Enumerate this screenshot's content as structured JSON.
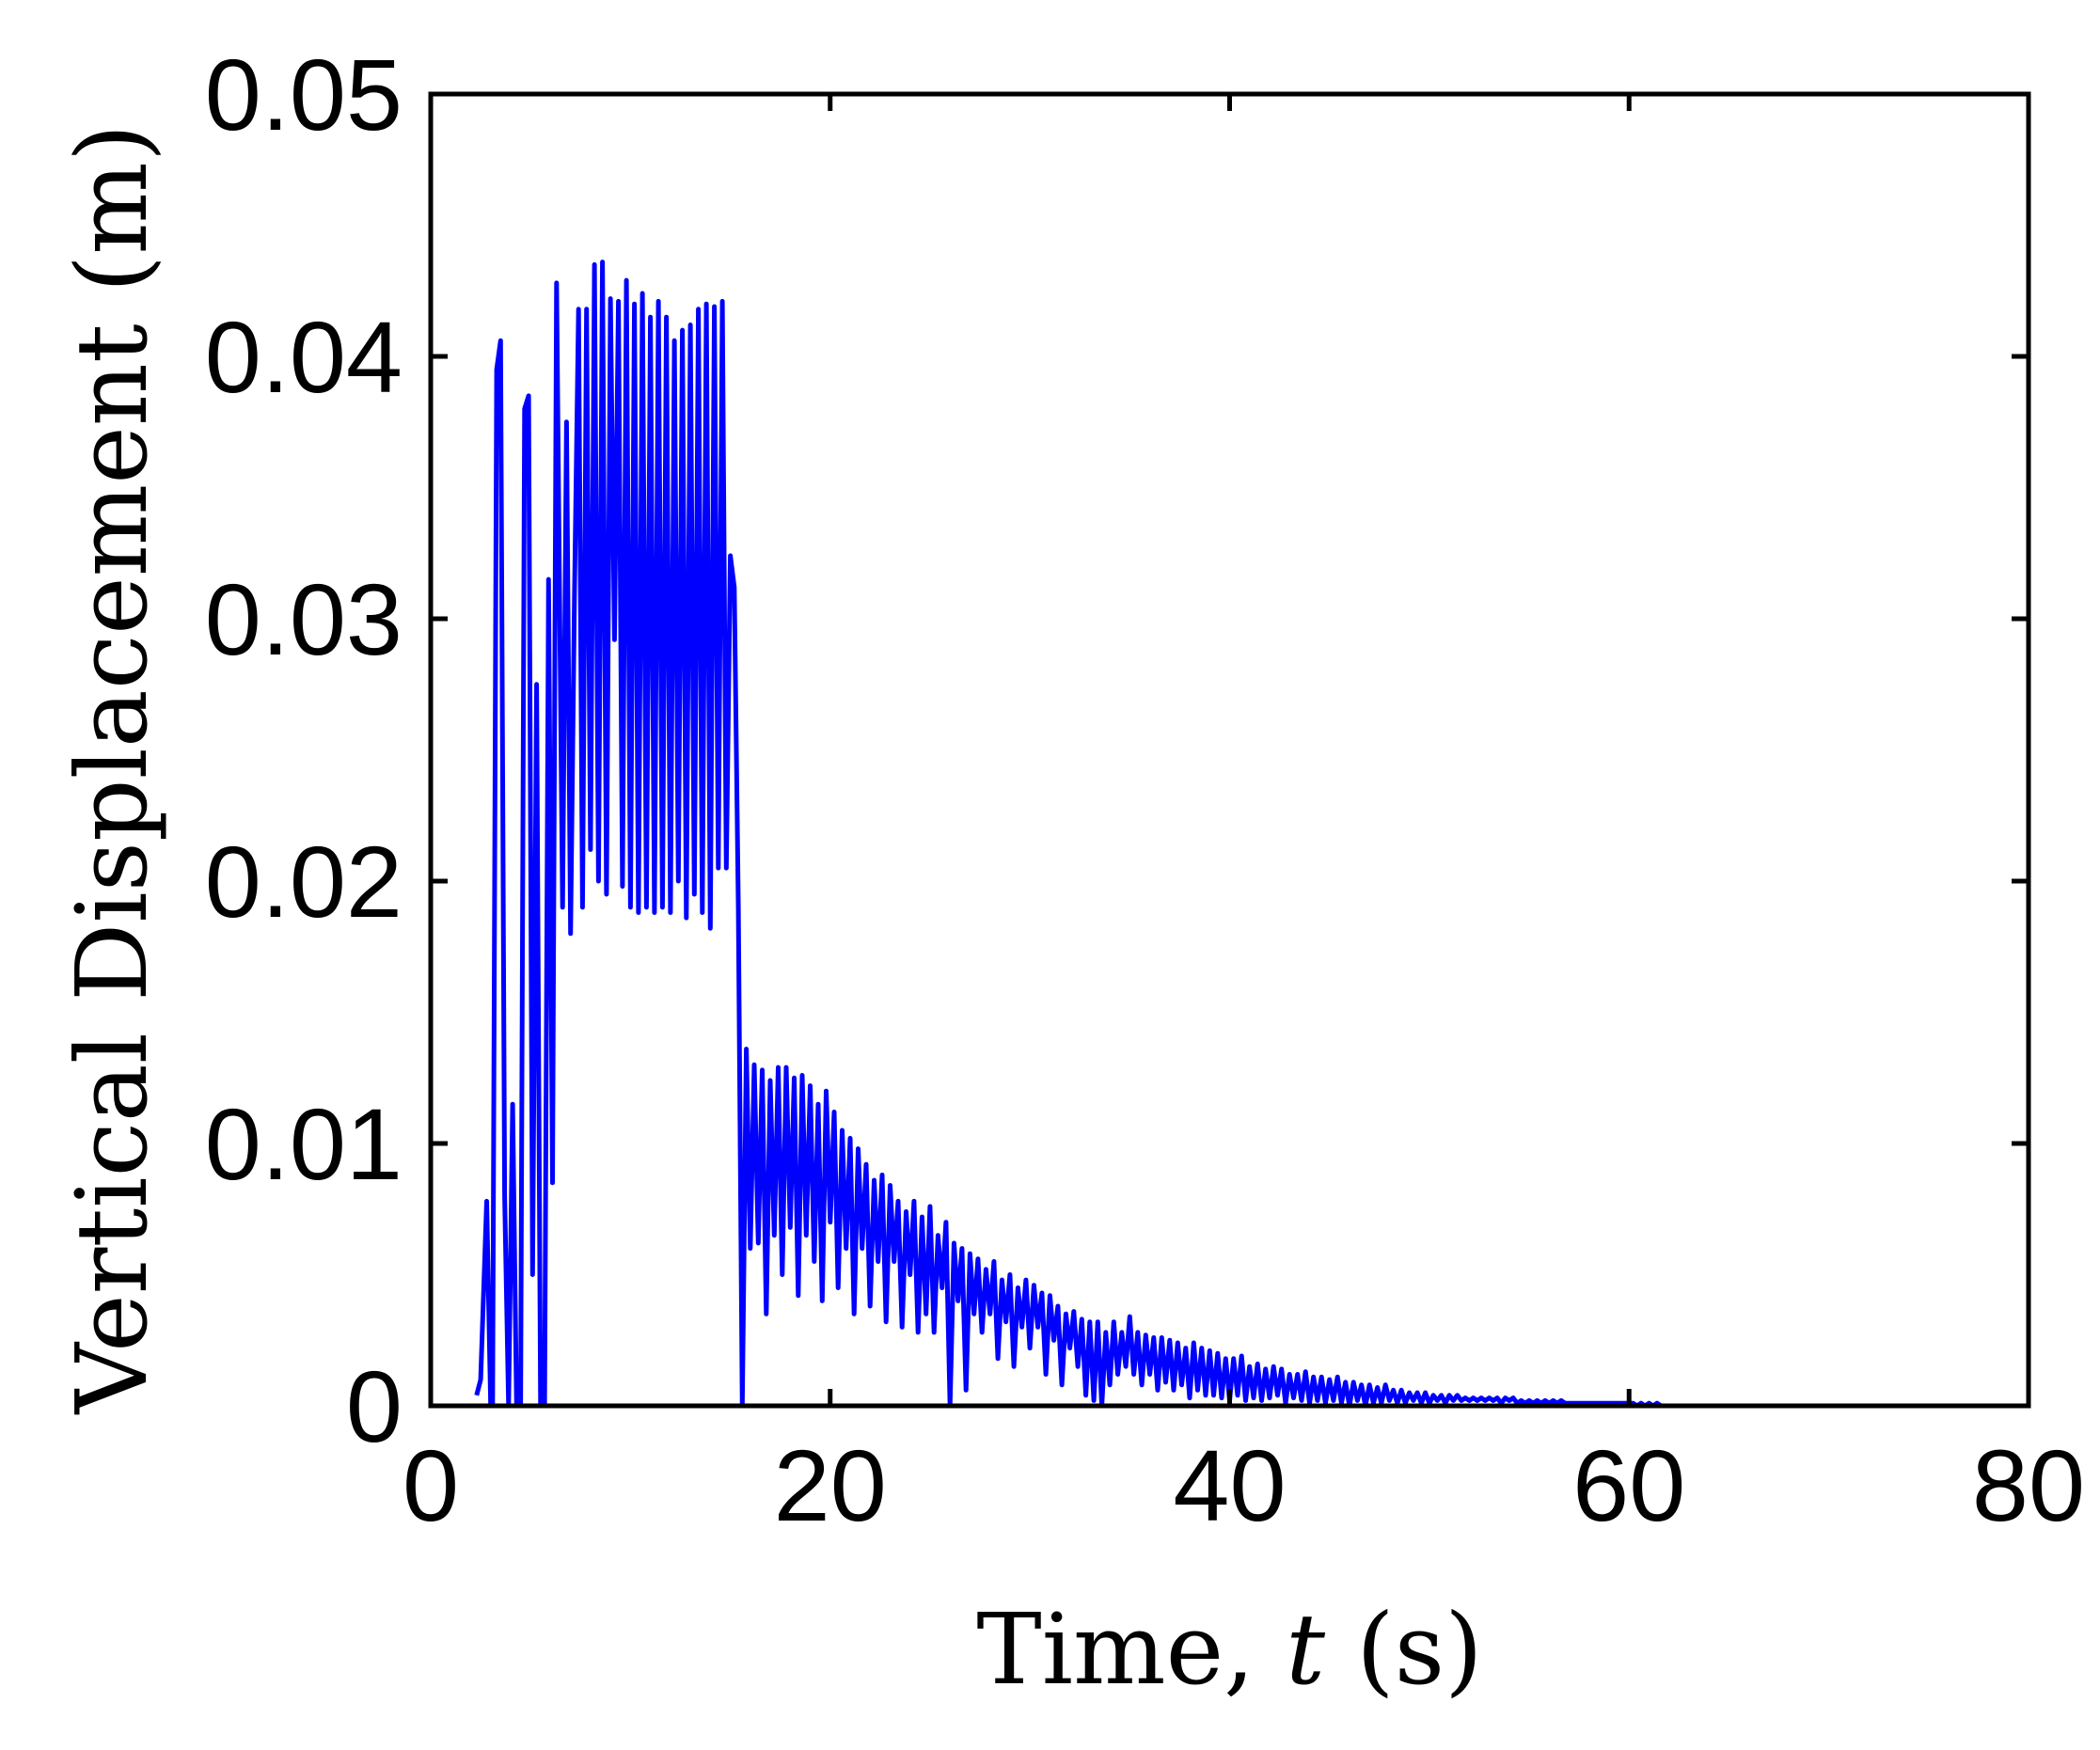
{
  "chart_data": {
    "type": "line",
    "title": "",
    "xlabel": "Time, t (s)",
    "xlabel_parts": {
      "before": "Time, ",
      "var": "t",
      "after": " (s)"
    },
    "ylabel": "Vertical Displacement (m)",
    "xlim": [
      0,
      80
    ],
    "ylim": [
      0,
      0.05
    ],
    "xticks": [
      0,
      20,
      40,
      60,
      80
    ],
    "xtick_labels": [
      "0",
      "20",
      "40",
      "60",
      "80"
    ],
    "yticks": [
      0,
      0.01,
      0.02,
      0.03,
      0.04,
      0.05
    ],
    "ytick_labels": [
      "0",
      "0.01",
      "0.02",
      "0.03",
      "0.04",
      "0.05"
    ],
    "grid": false,
    "legend": "none",
    "series": [
      {
        "color": "#0000ff",
        "x": [
          2.3,
          2.5,
          2.8,
          3.0,
          3.1,
          3.3,
          3.5,
          3.7,
          3.9,
          4.1,
          4.3,
          4.5,
          4.7,
          4.9,
          5.1,
          5.3,
          5.5,
          5.7,
          5.9,
          6.1,
          6.3,
          6.6,
          6.8,
          7.0,
          7.2,
          7.4,
          7.6,
          7.8,
          8.0,
          8.2,
          8.4,
          8.6,
          8.8,
          9.0,
          9.2,
          9.4,
          9.6,
          9.8,
          10.0,
          10.2,
          10.4,
          10.6,
          10.8,
          11.0,
          11.2,
          11.4,
          11.6,
          11.8,
          12.0,
          12.2,
          12.4,
          12.6,
          12.8,
          13.0,
          13.2,
          13.4,
          13.6,
          13.8,
          14.0,
          14.2,
          14.4,
          14.6,
          14.8,
          15.0,
          15.2,
          15.4,
          15.6,
          15.8,
          16.0,
          16.2,
          16.4,
          16.6,
          16.8,
          17.0,
          17.2,
          17.4,
          17.6,
          17.8,
          18.0,
          18.2,
          18.4,
          18.6,
          18.8,
          19.0,
          19.2,
          19.4,
          19.6,
          19.8,
          20.0,
          20.2,
          20.4,
          20.6,
          20.8,
          21.0,
          21.2,
          21.4,
          21.6,
          21.8,
          22.0,
          22.2,
          22.4,
          22.6,
          22.8,
          23.0,
          23.2,
          23.4,
          23.6,
          23.8,
          24.0,
          24.2,
          24.4,
          24.6,
          24.8,
          25.0,
          25.2,
          25.4,
          25.6,
          25.8,
          26.0,
          26.2,
          26.4,
          26.6,
          26.8,
          27.0,
          27.2,
          27.4,
          27.6,
          27.8,
          28.0,
          28.2,
          28.4,
          28.6,
          28.8,
          29.0,
          29.2,
          29.4,
          29.6,
          29.8,
          30.0,
          30.2,
          30.4,
          30.6,
          30.8,
          31.0,
          31.2,
          31.4,
          31.6,
          31.8,
          32.0,
          32.2,
          32.4,
          32.6,
          32.8,
          33.0,
          33.2,
          33.4,
          33.6,
          33.8,
          34.0,
          34.2,
          34.4,
          34.6,
          34.8,
          35.0,
          35.2,
          35.4,
          35.6,
          35.8,
          36.0,
          36.2,
          36.4,
          36.6,
          36.8,
          37.0,
          37.2,
          37.4,
          37.6,
          37.8,
          38.0,
          38.2,
          38.4,
          38.6,
          38.8,
          39.0,
          39.2,
          39.4,
          39.6,
          39.8,
          40.0,
          40.2,
          40.4,
          40.6,
          40.8,
          41.0,
          41.2,
          41.4,
          41.6,
          41.8,
          42.0,
          42.2,
          42.4,
          42.6,
          42.8,
          43.0,
          43.2,
          43.4,
          43.6,
          43.8,
          44.0,
          44.2,
          44.4,
          44.6,
          44.8,
          45.0,
          45.2,
          45.4,
          45.6,
          45.8,
          46.0,
          46.2,
          46.4,
          46.6,
          46.8,
          47.0,
          47.2,
          47.4,
          47.6,
          47.8,
          48.0,
          48.2,
          48.4,
          48.6,
          48.8,
          49.0,
          49.2,
          49.4,
          49.6,
          49.8,
          50.0,
          50.2,
          50.4,
          50.6,
          50.8,
          51.0,
          51.2,
          51.4,
          51.6,
          51.8,
          52.0,
          52.2,
          52.4,
          52.6,
          52.8,
          53.0,
          53.2,
          53.4,
          53.6,
          53.8,
          54.0,
          54.2,
          54.4,
          54.6,
          54.8,
          55.0,
          55.2,
          55.4,
          55.6,
          55.8,
          56.0,
          56.2,
          56.4,
          56.6,
          56.8,
          57.0,
          57.2,
          57.4,
          57.6,
          57.8,
          58.0,
          58.2,
          58.4,
          58.6,
          58.8,
          59.0,
          59.2,
          59.4,
          59.6,
          59.8,
          60.0,
          60.2,
          60.4,
          60.6,
          60.8,
          61.0,
          61.2,
          61.4,
          61.6,
          61.8,
          62.0,
          62.2
        ],
        "y": [
          0.0004,
          0.001,
          0.0078,
          0.0001,
          0.0,
          0.0395,
          0.0406,
          0.008,
          0.0,
          0.0115,
          0.0,
          0.0,
          0.038,
          0.0385,
          0.005,
          0.0275,
          0.0,
          0.0,
          0.0315,
          0.0085,
          0.0428,
          0.019,
          0.0375,
          0.018,
          0.031,
          0.0418,
          0.019,
          0.0418,
          0.0212,
          0.0435,
          0.02,
          0.0436,
          0.0195,
          0.0422,
          0.0292,
          0.0421,
          0.0198,
          0.0429,
          0.019,
          0.042,
          0.0188,
          0.0424,
          0.019,
          0.0415,
          0.0188,
          0.0421,
          0.019,
          0.0415,
          0.0188,
          0.0406,
          0.02,
          0.041,
          0.0186,
          0.0412,
          0.0195,
          0.0418,
          0.0188,
          0.042,
          0.0182,
          0.0419,
          0.0205,
          0.0421,
          0.0205,
          0.0324,
          0.0312,
          0.019,
          0.0,
          0.0136,
          0.006,
          0.013,
          0.0062,
          0.0128,
          0.0035,
          0.0124,
          0.0065,
          0.0129,
          0.005,
          0.0129,
          0.0068,
          0.0125,
          0.0042,
          0.0126,
          0.0065,
          0.0122,
          0.0055,
          0.0115,
          0.004,
          0.012,
          0.007,
          0.0112,
          0.0045,
          0.0105,
          0.006,
          0.0102,
          0.0035,
          0.0098,
          0.006,
          0.0092,
          0.0038,
          0.0086,
          0.0055,
          0.0088,
          0.0032,
          0.0084,
          0.0055,
          0.0078,
          0.003,
          0.0074,
          0.005,
          0.0078,
          0.0028,
          0.0072,
          0.0035,
          0.0076,
          0.0028,
          0.0065,
          0.0045,
          0.007,
          0.0,
          0.0062,
          0.004,
          0.006,
          0.0006,
          0.0058,
          0.0035,
          0.0056,
          0.0028,
          0.0052,
          0.0035,
          0.0055,
          0.0018,
          0.0048,
          0.0032,
          0.005,
          0.0015,
          0.0045,
          0.003,
          0.0048,
          0.0022,
          0.0046,
          0.003,
          0.0043,
          0.0012,
          0.0042,
          0.0025,
          0.0038,
          0.0008,
          0.0035,
          0.0022,
          0.0036,
          0.0015,
          0.0033,
          0.0004,
          0.0032,
          0.0002,
          0.0032,
          0.0,
          0.0028,
          0.0008,
          0.0032,
          0.0012,
          0.0028,
          0.0015,
          0.0034,
          0.0012,
          0.0028,
          0.0008,
          0.0027,
          0.0012,
          0.0026,
          0.0006,
          0.0026,
          0.0009,
          0.0025,
          0.0006,
          0.0024,
          0.0008,
          0.0022,
          0.0003,
          0.0024,
          0.0006,
          0.0022,
          0.0004,
          0.0021,
          0.0004,
          0.002,
          0.0003,
          0.0018,
          0.0002,
          0.0018,
          0.0004,
          0.0019,
          0.0002,
          0.0015,
          0.0003,
          0.0016,
          0.0002,
          0.0014,
          0.0003,
          0.0015,
          0.0004,
          0.0014,
          0.0001,
          0.0012,
          0.0003,
          0.0012,
          0.0002,
          0.0013,
          0.0001,
          0.0011,
          0.0002,
          0.0011,
          0.0001,
          0.001,
          0.0002,
          0.0011,
          0.0001,
          0.0009,
          0.0,
          0.0009,
          0.0002,
          0.0008,
          0.0,
          0.0008,
          0.0001,
          0.0007,
          0.0001,
          0.0008,
          0.0002,
          0.0006,
          0.0001,
          0.0006,
          0.0001,
          0.0005,
          0.0002,
          0.0005,
          0.0001,
          0.0005,
          0.0001,
          0.0004,
          0.0002,
          0.0004,
          0.0001,
          0.0004,
          0.0002,
          0.0004,
          0.0002,
          0.0003,
          0.0002,
          0.0003,
          0.0002,
          0.0003,
          0.0002,
          0.0003,
          0.0002,
          0.0003,
          0.0001,
          0.0003,
          0.0002,
          0.0003,
          0.0001,
          0.0002,
          0.0001,
          0.0002,
          0.0001,
          0.0002,
          0.0001,
          0.0002,
          0.0001,
          0.0002,
          0.0001,
          0.0002,
          0.0001,
          0.0001,
          0.0001,
          0.0001,
          0.0001,
          0.0001,
          0.0001,
          0.0001,
          0.0001,
          0.0001,
          0.0001,
          0.0001,
          0.0001,
          0.0001,
          0.0001,
          0.0001,
          0.0001,
          0.0001,
          0.0,
          0.0001,
          0.0,
          0.0001,
          0.0,
          0.0001,
          0.0,
          0.0,
          0.0,
          0.0
        ]
      }
    ]
  }
}
